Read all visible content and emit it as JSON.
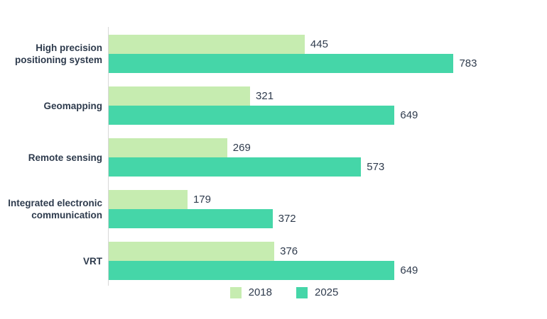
{
  "chart_data": {
    "type": "bar",
    "orientation": "horizontal",
    "title": "",
    "xlabel": "",
    "ylabel": "",
    "xlim": [
      0,
      800
    ],
    "grid": false,
    "value_labels": true,
    "legend_position": "bottom",
    "categories": [
      "High precision positioning system",
      "Geomapping",
      "Remote sensing",
      "Integrated electronic communication",
      "VRT"
    ],
    "series": [
      {
        "name": "2018",
        "color": "#c6ecb0",
        "values": [
          445,
          321,
          269,
          179,
          376
        ]
      },
      {
        "name": "2025",
        "color": "#45d6a8",
        "values": [
          783,
          649,
          573,
          372,
          649
        ]
      }
    ]
  },
  "legend": {
    "items": [
      {
        "label": "2018",
        "color": "#c6ecb0"
      },
      {
        "label": "2025",
        "color": "#45d6a8"
      }
    ]
  },
  "colors": {
    "series_2018": "#c6ecb0",
    "series_2025": "#45d6a8",
    "category_text": "#2e3b4d",
    "value_text": "#2f3b4d",
    "axis_line": "#d8d8d8",
    "background": "#ffffff"
  }
}
